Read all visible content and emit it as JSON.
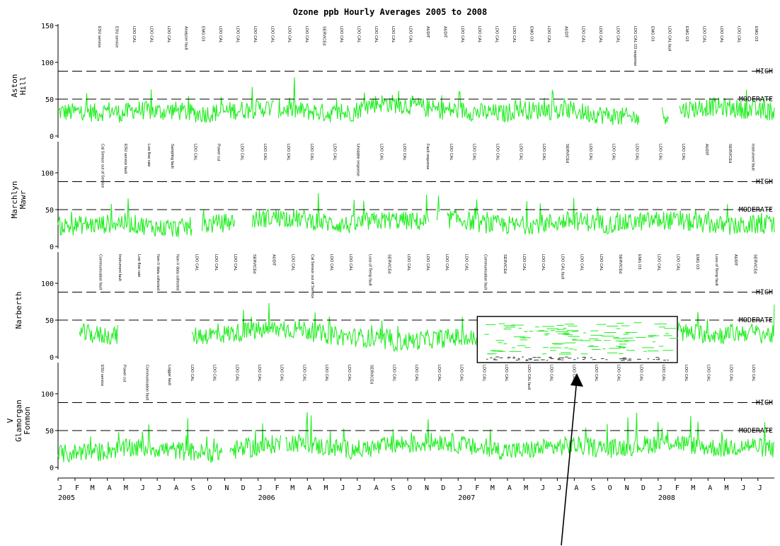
{
  "chart_data": {
    "type": "line",
    "title": "Ozone ppb Hourly Averages 2005 to 2008",
    "x_range": [
      "2005-01-01",
      "2008-07-31"
    ],
    "months": [
      "J",
      "F",
      "M",
      "A",
      "M",
      "J",
      "J",
      "A",
      "S",
      "O",
      "N",
      "D",
      "J",
      "F",
      "M",
      "A",
      "M",
      "J",
      "J",
      "A",
      "S",
      "O",
      "N",
      "D",
      "J",
      "F",
      "M",
      "A",
      "M",
      "J",
      "J",
      "A",
      "S",
      "O",
      "N",
      "D",
      "J",
      "F",
      "M",
      "A",
      "M",
      "J",
      "J"
    ],
    "years": [
      "2005",
      "2006",
      "2007",
      "2008"
    ],
    "line_color": "#22ee22",
    "ylim": [
      0,
      150
    ],
    "bands": [
      {
        "label": "HIGH",
        "value": 88
      },
      {
        "label": "MODERATE",
        "value": 50
      }
    ],
    "panels": [
      {
        "name": "Aston Hill",
        "yticks": [
          "150",
          "100",
          "50",
          "0"
        ],
        "levels": [
          33,
          32,
          34,
          31,
          35,
          30,
          36,
          34,
          33,
          35,
          32,
          30,
          31,
          33,
          35,
          36,
          38,
          37,
          36,
          34,
          33,
          31,
          30,
          32,
          40,
          45,
          44,
          42,
          41,
          37,
          35,
          35,
          34,
          32,
          31,
          30,
          38,
          34,
          36,
          33,
          35,
          32,
          30,
          28,
          26,
          25,
          24,
          27,
          31,
          36,
          38,
          40,
          39,
          37,
          36,
          33,
          34
        ],
        "gaps": [
          [
            "2006-01-30",
            "2006-02-06"
          ],
          [
            "2007-11-28",
            "2008-01-08"
          ],
          [
            "2008-01-20",
            "2008-02-08"
          ]
        ],
        "events": [
          "ESU service",
          "ESU service",
          "LDO CAL",
          "LDO CAL",
          "LDO CAL",
          "Analyzer fault",
          "EMG O3",
          "LDO CAL",
          "LDO CAL",
          "LDO CAL",
          "LDO CAL",
          "LDO CAL",
          "LDO CAL",
          "SERVICEd",
          "LDO CAL",
          "LDO CAL",
          "LDO CAL",
          "LDO CAL",
          "LDO CAL",
          "AUDIT",
          "AUDIT",
          "LDO CAL",
          "LDO CAL",
          "LDO CAL",
          "LDO CAL",
          "EMG O3",
          "LDO CAL",
          "AUDIT",
          "LDO CAL",
          "LDO CAL",
          "LDO CAL",
          "LDO CAL O3 response",
          "EMG O3",
          "LDO CAL fault",
          "EMG O3",
          "LDO CAL",
          "LDO CAL",
          "LDO CAL",
          "EMG O3"
        ]
      },
      {
        "name": "Marchlyn Mawr",
        "yticks": [
          "100",
          "50",
          "0"
        ],
        "levels": [
          28,
          27,
          30,
          29,
          31,
          33,
          30,
          28,
          25,
          24,
          26,
          29,
          30,
          32,
          34,
          36,
          38,
          40,
          39,
          37,
          35,
          32,
          30,
          29,
          33,
          34,
          36,
          35,
          34,
          33,
          36,
          38,
          35,
          31,
          30,
          29,
          28,
          30,
          31,
          33,
          35,
          34,
          32,
          30,
          31,
          33,
          34,
          36,
          35,
          33,
          31,
          30,
          28,
          27,
          29,
          30,
          28
        ],
        "gaps": [
          [
            "2005-09-02",
            "2005-09-20"
          ],
          [
            "2005-11-20",
            "2005-12-20"
          ],
          [
            "2006-11-10",
            "2006-11-22"
          ],
          [
            "2006-11-28",
            "2006-12-12"
          ]
        ],
        "events": [
          "Cal Sensor out of Service",
          "ESU service fault",
          "Low flow rate",
          "Sampling fault",
          "LDO CAL",
          "Power cut",
          "LDO CAL",
          "LDO CAL",
          "LDO CAL",
          "LDO CAL",
          "LDO CAL",
          "Unstable response",
          "LDO CAL",
          "LDO CAL",
          "Fault response",
          "LDO CAL",
          "LDO CAL",
          "LDO CAL",
          "LDO CAL",
          "LDO CAL",
          "SERVICEd",
          "LDO CAL",
          "LDO CAL",
          "LDO CAL",
          "LDO CAL",
          "LDO CAL",
          "AUDIT",
          "SERVICEd",
          "Instrument fault"
        ]
      },
      {
        "name": "Narberth",
        "yticks": [
          "100",
          "50",
          "0"
        ],
        "levels": [
          30,
          28,
          32,
          30,
          29,
          31,
          28,
          27,
          26,
          25,
          27,
          29,
          30,
          31,
          33,
          35,
          36,
          38,
          37,
          39,
          33,
          30,
          28,
          27,
          26,
          22,
          20,
          21,
          22,
          24,
          25,
          27,
          24,
          25,
          26,
          28,
          24,
          23,
          25,
          26,
          27,
          28,
          30,
          31,
          33,
          35,
          34,
          36,
          34,
          33,
          32,
          31,
          30,
          32,
          34,
          31,
          30
        ],
        "gaps": [
          [
            "2005-01-01",
            "2005-02-08"
          ],
          [
            "2005-04-20",
            "2005-09-01"
          ],
          [
            "2007-02-05",
            "2008-02-05"
          ]
        ],
        "events": [
          "Communication fault",
          "Instrument fault",
          "Low flow rate",
          "Non-V data collected",
          "Non-V data collected",
          "LDO CAL",
          "LDO CAL",
          "LDO CAL",
          "SERVICEd",
          "AUDIT",
          "LDO CAL",
          "Cal Sensor out of Service",
          "LDO CAL",
          "LDO CAL",
          "Loss of Temp fault",
          "SERVICEd",
          "LDO CAL",
          "LDO CAL",
          "LDO CAL",
          "LDO CAL",
          "Communication fault",
          "SERVICEd",
          "LDO CAL",
          "LDO CAL",
          "LDO CAL fault",
          "LDO CAL",
          "LDO CAL",
          "SERVICEd",
          "EMG O3",
          "LDO CAL",
          "LDO CAL",
          "EMG O3",
          "Loss of Temp fault",
          "AUDIT",
          "SERVICEd"
        ]
      },
      {
        "name": "V Glamorgan Fonmon",
        "yticks": [
          "100",
          "50",
          "0"
        ],
        "levels": [
          18,
          19,
          22,
          20,
          24,
          25,
          26,
          27,
          25,
          23,
          22,
          20,
          19,
          22,
          24,
          26,
          28,
          32,
          35,
          33,
          30,
          27,
          26,
          24,
          25,
          27,
          30,
          32,
          31,
          34,
          36,
          33,
          28,
          26,
          24,
          23,
          22,
          24,
          26,
          28,
          30,
          29,
          27,
          25,
          27,
          29,
          31,
          33,
          35,
          32,
          29,
          27,
          26,
          28,
          30,
          27,
          25
        ],
        "gaps": [
          [
            "2005-10-28",
            "2005-11-10"
          ],
          [
            "2006-02-12",
            "2006-02-20"
          ]
        ],
        "events": [
          "ESU service",
          "Power cut",
          "Communication fault",
          "Logger fault",
          "LDO CAL",
          "LDO CAL",
          "LDO CAL",
          "LDO CAL",
          "LDO CAL",
          "LDO CAL",
          "LDO CAL",
          "LDO CAL",
          "SERVICEd",
          "LDO CAL",
          "LDO CAL",
          "LDO CAL",
          "LDO CAL",
          "LDO CAL",
          "LDO CAL",
          "LDO CAL fault",
          "LDO CAL",
          "LDO CAL",
          "LDO CAL",
          "LDO CAL",
          "LDO CAL",
          "LDO CAL",
          "LDO CAL",
          "LDO CAL",
          "LDO CAL",
          "LDO CAL"
        ]
      }
    ],
    "annotation": {
      "type": "box",
      "panel": "Narberth",
      "x_range": [
        "2007-02-05",
        "2008-02-05"
      ],
      "y_range": [
        0,
        55
      ],
      "arrow": true
    }
  }
}
